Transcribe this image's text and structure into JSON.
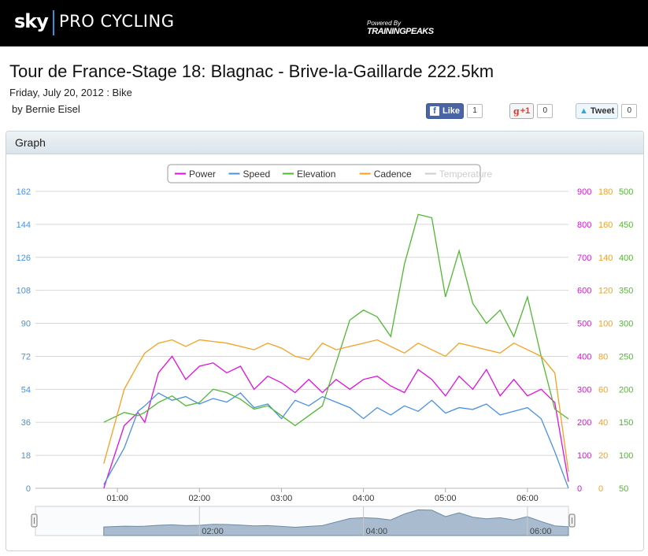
{
  "header": {
    "brand_sky": "sky",
    "brand_name": "PRO CYCLING",
    "powered_by": "Powered By",
    "partner": "TRAININGPEAKS"
  },
  "workout": {
    "title": "Tour de France-Stage 18: Blagnac - Brive-la-Gaillarde 222.5km",
    "date_line": "Friday, July 20, 2012 : Bike",
    "author": "by Bernie Eisel"
  },
  "social": {
    "like_label": "Like",
    "like_count": "1",
    "gplus_label": "+1",
    "gplus_count": "0",
    "tweet_label": "Tweet",
    "tweet_count": "0"
  },
  "panel": {
    "title": "Graph"
  },
  "chart_data": {
    "type": "line",
    "x_unit": "elapsed time (h:mm)",
    "x_ticks": [
      "01:00",
      "02:00",
      "03:00",
      "04:00",
      "05:00",
      "06:00"
    ],
    "xlim": [
      "00:00",
      "06:30"
    ],
    "navigator_ticks": [
      "02:00",
      "04:00",
      "06:00"
    ],
    "legend": [
      "Power",
      "Speed",
      "Elevation",
      "Cadence",
      "Temperature"
    ],
    "legend_placement": "top-center",
    "grid": true,
    "axes": {
      "speed": {
        "side": "left",
        "ticks": [
          "0",
          "18",
          "36",
          "54",
          "72",
          "90",
          "108",
          "126",
          "144",
          "162"
        ],
        "ylim": [
          0,
          162
        ],
        "color": "#4a90e2"
      },
      "power": {
        "side": "right",
        "ticks": [
          "0",
          "100",
          "200",
          "300",
          "400",
          "500",
          "600",
          "700",
          "800",
          "900"
        ],
        "ylim": [
          0,
          900
        ],
        "color": "#e010e0"
      },
      "cadence": {
        "side": "right",
        "ticks": [
          "0",
          "20",
          "40",
          "60",
          "80",
          "100",
          "120",
          "140",
          "160",
          "180"
        ],
        "ylim": [
          0,
          180
        ],
        "color": "#f5a020"
      },
      "elevation": {
        "side": "right",
        "ticks": [
          "50",
          "100",
          "150",
          "200",
          "250",
          "300",
          "350",
          "400",
          "450",
          "500"
        ],
        "ylim": [
          50,
          500
        ],
        "color": "#50b830"
      }
    },
    "series": [
      {
        "name": "Power",
        "axis": "power",
        "color": "#e010e0",
        "x": [
          "00:50",
          "01:05",
          "01:15",
          "01:20",
          "01:30",
          "01:40",
          "01:50",
          "02:00",
          "02:10",
          "02:20",
          "02:30",
          "02:40",
          "02:50",
          "03:00",
          "03:10",
          "03:20",
          "03:30",
          "03:40",
          "03:50",
          "04:00",
          "04:10",
          "04:20",
          "04:30",
          "04:40",
          "04:50",
          "05:00",
          "05:10",
          "05:20",
          "05:30",
          "05:40",
          "05:50",
          "06:00",
          "06:10",
          "06:20",
          "06:30"
        ],
        "y": [
          0,
          190,
          230,
          200,
          350,
          400,
          330,
          370,
          380,
          350,
          370,
          300,
          340,
          320,
          290,
          330,
          290,
          330,
          300,
          330,
          340,
          310,
          290,
          360,
          330,
          280,
          340,
          300,
          360,
          280,
          330,
          280,
          300,
          260,
          20
        ]
      },
      {
        "name": "Speed",
        "axis": "speed",
        "color": "#4a90e2",
        "x": [
          "00:50",
          "01:05",
          "01:15",
          "01:20",
          "01:30",
          "01:40",
          "01:50",
          "02:00",
          "02:10",
          "02:20",
          "02:30",
          "02:40",
          "02:50",
          "03:00",
          "03:10",
          "03:20",
          "03:30",
          "03:40",
          "03:50",
          "04:00",
          "04:10",
          "04:20",
          "04:30",
          "04:40",
          "04:50",
          "05:00",
          "05:10",
          "05:20",
          "05:30",
          "05:40",
          "05:50",
          "06:00",
          "06:10",
          "06:20",
          "06:30"
        ],
        "y": [
          2,
          22,
          42,
          45,
          52,
          48,
          50,
          46,
          49,
          47,
          52,
          44,
          46,
          38,
          48,
          45,
          50,
          47,
          44,
          38,
          44,
          40,
          45,
          42,
          48,
          41,
          44,
          43,
          46,
          40,
          42,
          44,
          38,
          20,
          0
        ]
      },
      {
        "name": "Elevation",
        "axis": "elevation",
        "color": "#50b830",
        "x": [
          "00:50",
          "01:05",
          "01:15",
          "01:20",
          "01:30",
          "01:40",
          "01:50",
          "02:00",
          "02:10",
          "02:20",
          "02:30",
          "02:40",
          "02:50",
          "03:00",
          "03:10",
          "03:20",
          "03:30",
          "03:40",
          "03:50",
          "04:00",
          "04:10",
          "04:20",
          "04:30",
          "04:40",
          "04:50",
          "05:00",
          "05:10",
          "05:20",
          "05:30",
          "05:40",
          "05:50",
          "06:00",
          "06:10",
          "06:20",
          "06:30"
        ],
        "y": [
          150,
          165,
          160,
          165,
          180,
          190,
          175,
          180,
          200,
          195,
          185,
          170,
          175,
          160,
          145,
          160,
          175,
          240,
          305,
          320,
          310,
          280,
          390,
          465,
          460,
          340,
          410,
          330,
          300,
          320,
          280,
          340,
          250,
          170,
          155
        ]
      },
      {
        "name": "Cadence",
        "axis": "cadence",
        "color": "#f5a020",
        "x": [
          "00:50",
          "01:05",
          "01:15",
          "01:20",
          "01:30",
          "01:40",
          "01:50",
          "02:00",
          "02:10",
          "02:20",
          "02:30",
          "02:40",
          "02:50",
          "03:00",
          "03:10",
          "03:20",
          "03:30",
          "03:40",
          "03:50",
          "04:00",
          "04:10",
          "04:20",
          "04:30",
          "04:40",
          "04:50",
          "05:00",
          "05:10",
          "05:20",
          "05:30",
          "05:40",
          "05:50",
          "06:00",
          "06:10",
          "06:20",
          "06:30"
        ],
        "y": [
          15,
          60,
          75,
          82,
          88,
          90,
          86,
          90,
          89,
          88,
          86,
          84,
          88,
          85,
          80,
          78,
          88,
          84,
          86,
          88,
          90,
          86,
          82,
          88,
          84,
          80,
          88,
          86,
          84,
          82,
          88,
          84,
          80,
          70,
          10
        ]
      },
      {
        "name": "Temperature",
        "axis": "speed",
        "color": "#cccccc",
        "x": [],
        "y": []
      }
    ]
  }
}
